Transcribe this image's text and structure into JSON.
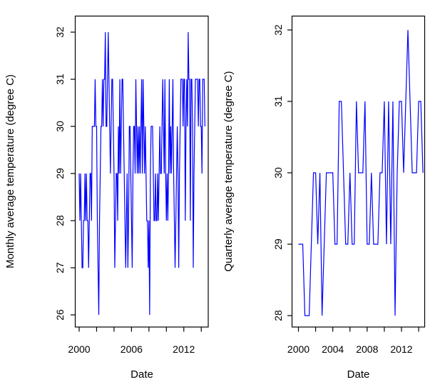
{
  "figure": {
    "background": "#ffffff",
    "box_color": "#000000",
    "text_color": "#000000"
  },
  "chart_data": [
    {
      "type": "line",
      "title": "",
      "ylabel": "Monthly average temperature (degree C)",
      "xlabel": "Date",
      "line_color": "#0000FF",
      "legend": "none",
      "grid": false,
      "ylim": [
        26,
        32
      ],
      "xlim": [
        1999.6,
        2014.8
      ],
      "yticks": [
        26,
        27,
        28,
        29,
        30,
        31,
        32
      ],
      "xticks": [
        2000,
        2002,
        2004,
        2006,
        2008,
        2010,
        2012,
        2014
      ],
      "xtick_labels": [
        "2000",
        "",
        "",
        "2006",
        "",
        "",
        "2012",
        ""
      ],
      "x_start": 2000.0,
      "x_step_years": 0.083333,
      "series_name": "Monthly average temperature",
      "values": [
        29,
        28,
        29,
        28,
        27,
        27,
        28,
        28,
        29,
        28,
        29,
        28,
        28,
        27,
        28,
        29,
        29,
        28,
        30,
        30,
        30,
        30,
        31,
        30,
        30,
        28,
        27,
        26,
        28,
        29,
        30,
        30,
        31,
        30,
        31,
        31,
        32,
        30,
        30,
        31,
        32,
        31,
        30,
        29,
        30,
        31,
        31,
        30,
        29,
        27,
        28,
        29,
        29,
        28,
        30,
        29,
        31,
        29,
        30,
        31,
        31,
        30,
        29,
        28,
        27,
        28,
        29,
        27,
        28,
        30,
        30,
        29,
        28,
        27,
        29,
        30,
        30,
        29,
        31,
        30,
        29,
        30,
        29,
        30,
        29,
        30,
        31,
        29,
        31,
        30,
        29,
        30,
        29,
        28,
        28,
        27,
        28,
        26,
        29,
        30,
        30,
        30,
        29,
        28,
        28,
        29,
        28,
        28,
        29,
        28,
        29,
        30,
        29,
        29,
        30,
        31,
        30,
        29,
        31,
        29,
        28,
        29,
        28,
        29,
        31,
        29,
        30,
        29,
        30,
        31,
        29,
        28,
        27,
        28,
        29,
        30,
        29,
        27,
        29,
        30,
        31,
        31,
        31,
        30,
        31,
        31,
        28,
        30,
        31,
        30,
        32,
        31,
        31,
        28,
        31,
        31,
        30,
        27,
        29,
        30,
        31,
        31,
        31,
        31,
        30,
        31,
        31,
        30,
        30,
        29,
        31,
        31,
        31,
        30
      ]
    },
    {
      "type": "line",
      "title": "",
      "ylabel": "Quarterly average temperature (degree C)",
      "xlabel": "Date",
      "line_color": "#0000FF",
      "legend": "none",
      "grid": false,
      "ylim": [
        28,
        32
      ],
      "xlim": [
        1999.3,
        2014.7
      ],
      "yticks": [
        28,
        29,
        30,
        31,
        32
      ],
      "xticks": [
        2000,
        2002,
        2004,
        2006,
        2008,
        2010,
        2012,
        2014
      ],
      "xtick_labels": [
        "2000",
        "",
        "2004",
        "",
        "2008",
        "",
        "2012",
        ""
      ],
      "x_start": 2000.0,
      "x_step_years": 0.25,
      "series_name": "Quarterly average temperature",
      "values": [
        29,
        29,
        29,
        28,
        28,
        28,
        29,
        30,
        30,
        29,
        30,
        28,
        29,
        30,
        30,
        30,
        30,
        29,
        29,
        31,
        31,
        30,
        29,
        29,
        30,
        29,
        29,
        31,
        30,
        30,
        30,
        31,
        29,
        29,
        30,
        29,
        29,
        29,
        30,
        30,
        31,
        29,
        31,
        29,
        31,
        28,
        30,
        31,
        31,
        30,
        31,
        32,
        31,
        30,
        30,
        30,
        31,
        31,
        30
      ]
    }
  ]
}
